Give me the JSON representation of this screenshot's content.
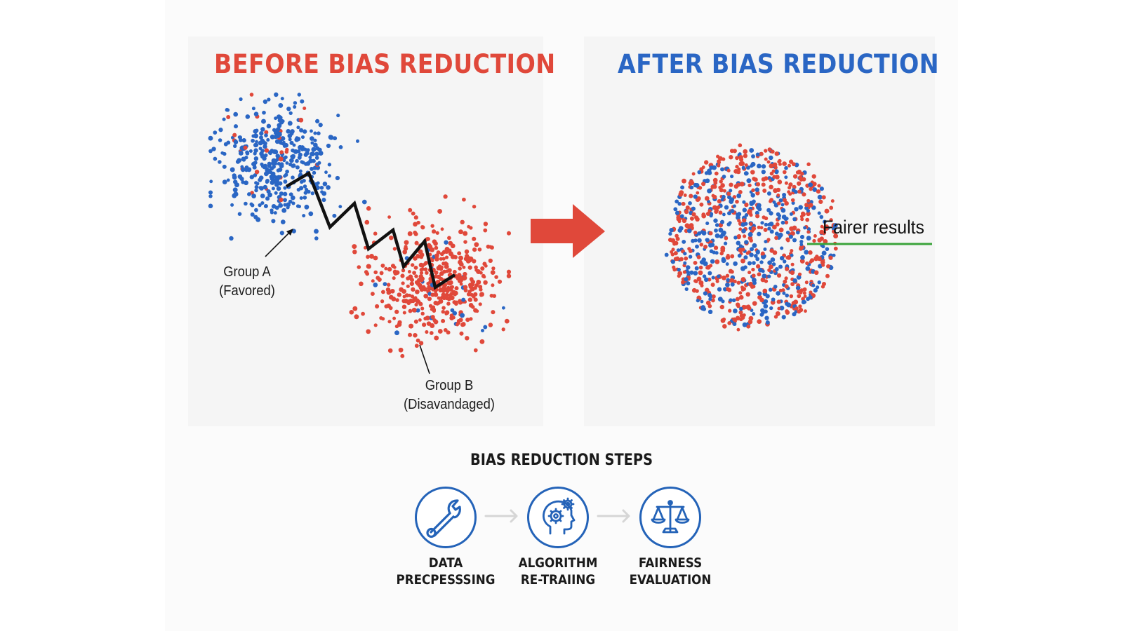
{
  "colors": {
    "red": "#e0483a",
    "blue": "#2a66c4",
    "green": "#3aa33a",
    "black": "#111111",
    "step_blue": "#2463b8"
  },
  "before": {
    "title": "BEFORE BIAS REDUCTION",
    "group_a": {
      "line1": "Group A",
      "line2": "(Favored)"
    },
    "group_b": {
      "line1": "Group B",
      "line2": "(Disavandaged)"
    }
  },
  "after": {
    "title": "AFTER BIAS REDUCTION",
    "annotation": "Fairer results"
  },
  "transition_icon": "right-arrow-icon",
  "steps": {
    "title": "BIAS REDUCTION STEPS",
    "items": [
      {
        "line1": "DATA",
        "line2": "PRECPESSSING",
        "icon": "wrench-icon"
      },
      {
        "line1": "ALGORITHM",
        "line2": "RE-TRAIING",
        "icon": "head-gears-icon"
      },
      {
        "line1": "FAIRNESS",
        "line2": "EVALUATION",
        "icon": "scales-icon"
      }
    ]
  }
}
